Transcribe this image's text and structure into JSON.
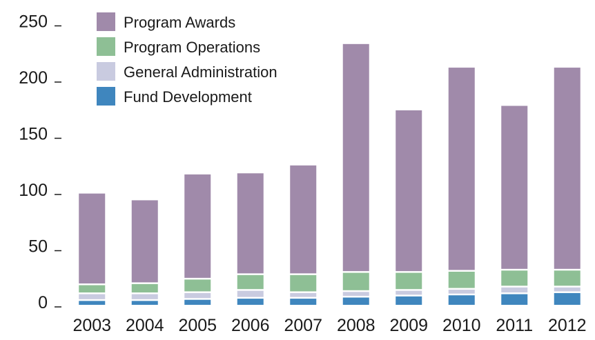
{
  "chart_data": {
    "type": "bar",
    "stacked": true,
    "categories": [
      "2003",
      "2004",
      "2005",
      "2006",
      "2007",
      "2008",
      "2009",
      "2010",
      "2011",
      "2012"
    ],
    "series": [
      {
        "name": "Fund Development",
        "color": "#3f86be",
        "values": [
          5,
          5,
          6,
          7,
          7,
          8,
          9,
          10,
          11,
          12
        ]
      },
      {
        "name": "General Administration",
        "color": "#c9cbe0",
        "values": [
          6,
          6,
          6,
          7,
          5,
          5,
          5,
          5,
          6,
          5
        ]
      },
      {
        "name": "Program Operations",
        "color": "#8ebf95",
        "values": [
          8,
          9,
          12,
          14,
          16,
          17,
          16,
          16,
          15,
          15
        ]
      },
      {
        "name": "Program Awards",
        "color": "#a08aaa",
        "values": [
          80,
          73,
          92,
          89,
          96,
          202,
          143,
          180,
          145,
          179
        ]
      }
    ],
    "gap_color": "#ffffff",
    "ylim": [
      0,
      250
    ],
    "yticks": [
      0,
      50,
      100,
      150,
      200,
      250
    ],
    "ytick_labels": [
      "0",
      "50",
      "100",
      "150",
      "200",
      "250"
    ],
    "title": "",
    "xlabel": "",
    "ylabel": "",
    "grid": false,
    "legend": {
      "position": "top-left",
      "order": [
        "Program Awards",
        "Program Operations",
        "General Administration",
        "Fund Development"
      ]
    }
  }
}
